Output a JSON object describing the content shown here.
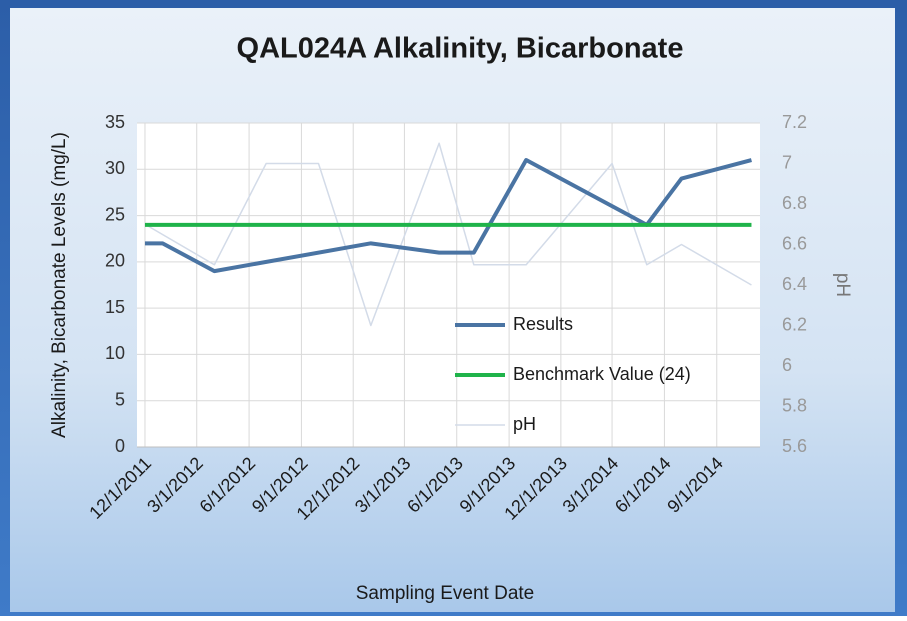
{
  "chart_data": {
    "type": "line",
    "title": "QAL024A Alkalinity, Bicarbonate",
    "y_label": "Alkalinity, Bicarbonate Levels (mg/L)",
    "y2_label": "pH",
    "x_label": "Sampling Event Date",
    "xlim": [
      "11/17/2011",
      "11/16/2014"
    ],
    "xticks": [
      "12/1/2011",
      "3/1/2012",
      "6/1/2012",
      "9/1/2012",
      "12/1/2012",
      "3/1/2013",
      "6/1/2013",
      "9/1/2013",
      "12/1/2013",
      "3/1/2014",
      "6/1/2014",
      "9/1/2014"
    ],
    "ylim": [
      0,
      35
    ],
    "yticks": [
      0,
      5,
      10,
      15,
      20,
      25,
      30,
      35
    ],
    "y2lim": [
      5.6,
      7.2
    ],
    "y2ticks": [
      {
        "value": 5.6,
        "label": "5.6"
      },
      {
        "value": 5.8,
        "label": "5.8"
      },
      6,
      {
        "value": 6.2,
        "label": "6.2"
      },
      {
        "value": 6.4,
        "label": "6.4"
      },
      {
        "value": 6.6,
        "label": "6.6"
      },
      {
        "value": 6.8,
        "label": "6.8"
      },
      7,
      {
        "value": 7.2,
        "label": "7.2"
      }
    ],
    "grid": true,
    "legend": "center",
    "series": [
      {
        "name": "Results",
        "color": "#4a74a3",
        "width": 4,
        "x": [
          "12/1/2011",
          "1/1/2012",
          "4/1/2012",
          "1/1/2013",
          "5/1/2013",
          "7/1/2013",
          "10/1/2013",
          "5/1/2014",
          "7/1/2014",
          "11/1/2014"
        ],
        "values": [
          22,
          22,
          19,
          22,
          21,
          21,
          31,
          24,
          29,
          31
        ]
      },
      {
        "name": "Benchmark Value (24)",
        "color": "#1fb34a",
        "width": 4,
        "x": [
          "12/1/2011",
          "11/1/2014"
        ],
        "values": [
          24,
          24
        ]
      },
      {
        "name": "pH",
        "color": "#d3dbe8",
        "width": 1.5,
        "axis": "y2",
        "x": [
          "12/1/2011",
          "4/1/2012",
          "7/1/2012",
          "10/1/2012",
          "1/1/2013",
          "5/1/2013",
          "7/1/2013",
          "10/1/2013",
          "3/1/2014",
          "5/1/2014",
          "7/1/2014",
          "11/1/2014"
        ],
        "values": [
          6.7,
          6.5,
          7.0,
          7.0,
          6.2,
          7.1,
          6.5,
          6.5,
          7.0,
          6.5,
          6.6,
          6.4
        ]
      }
    ]
  }
}
